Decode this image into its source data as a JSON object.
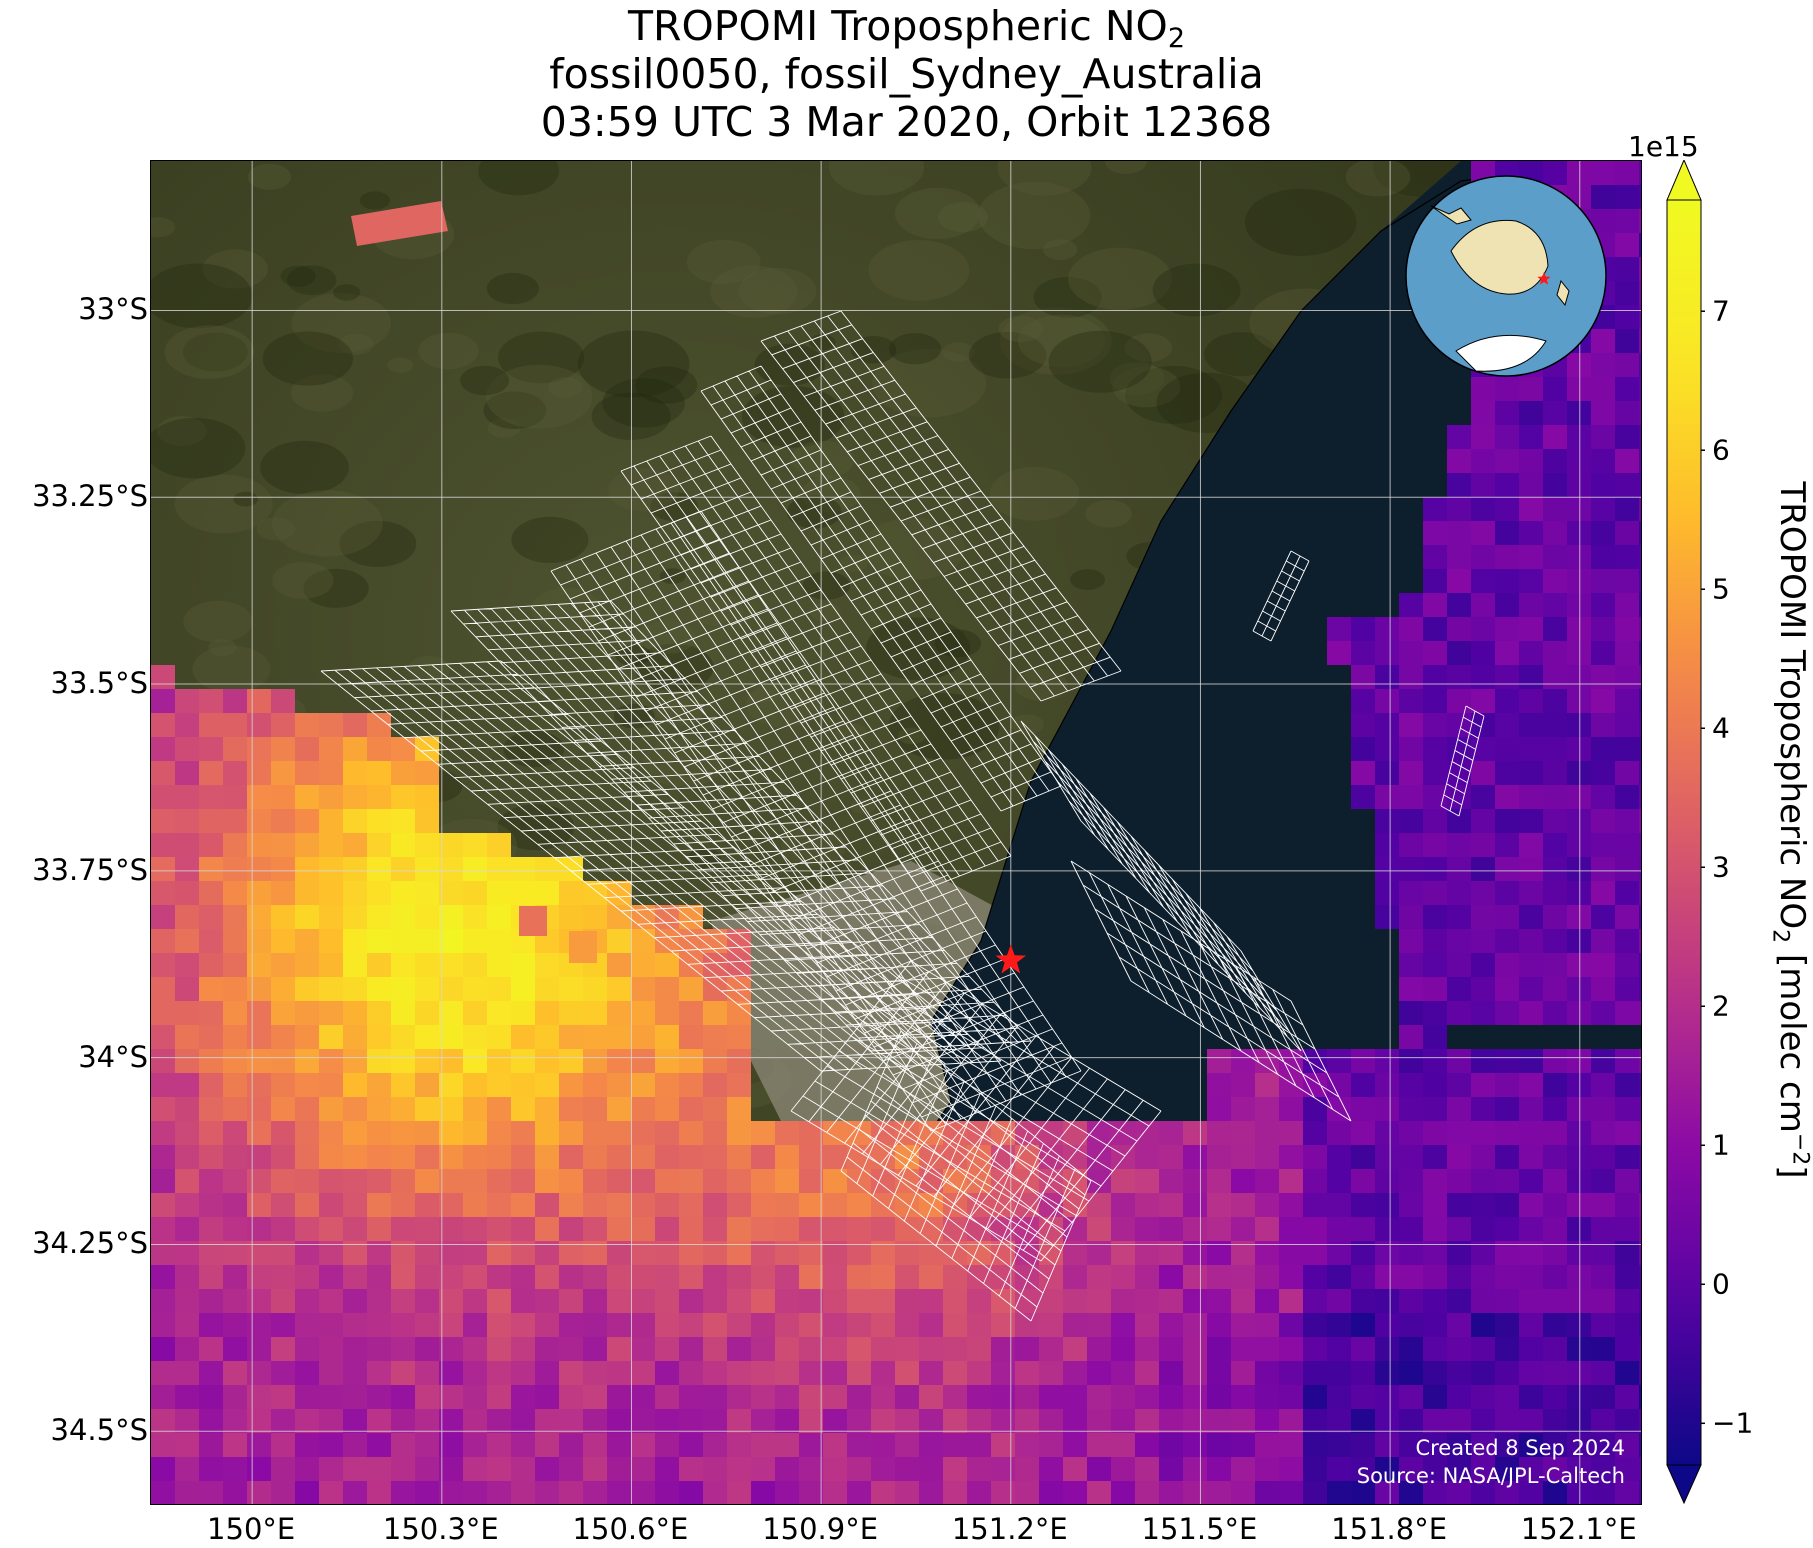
{
  "title": {
    "line1_prefix": "TROPOMI Tropospheric NO",
    "line1_sub": "2",
    "line2": "fossil0050, fossil_Sydney_Australia",
    "line3": "03:59 UTC 3 Mar 2020, Orbit 12368"
  },
  "map": {
    "lon_ticks": [
      {
        "value": 150.0,
        "label": "150°E"
      },
      {
        "value": 150.3,
        "label": "150.3°E"
      },
      {
        "value": 150.6,
        "label": "150.6°E"
      },
      {
        "value": 150.9,
        "label": "150.9°E"
      },
      {
        "value": 151.2,
        "label": "151.2°E"
      },
      {
        "value": 151.5,
        "label": "151.5°E"
      },
      {
        "value": 151.8,
        "label": "151.8°E"
      },
      {
        "value": 152.1,
        "label": "152.1°E"
      }
    ],
    "lat_ticks": [
      {
        "value": -33.0,
        "label": "33°S"
      },
      {
        "value": -33.25,
        "label": "33.25°S"
      },
      {
        "value": -33.5,
        "label": "33.5°S"
      },
      {
        "value": -33.75,
        "label": "33.75°S"
      },
      {
        "value": -34.0,
        "label": "34°S"
      },
      {
        "value": -34.25,
        "label": "34.25°S"
      },
      {
        "value": -34.5,
        "label": "34.5°S"
      }
    ],
    "lon_range": [
      149.84,
      152.2
    ],
    "lat_range": [
      -34.6,
      -32.8
    ],
    "target_marker": {
      "lon": 151.2,
      "lat": -33.87,
      "symbol": "star",
      "color": "#ff1a1a"
    },
    "credit_line1": "Created 8 Sep 2024",
    "credit_line2": "Source: NASA/JPL-Caltech",
    "inset_globe": {
      "centered_on": "Australia",
      "marker": "star",
      "marker_color": "#ff1a1a"
    },
    "colors": {
      "land": "#3e4424",
      "ocean": "#0d1f2d",
      "urban": "#8e8a78",
      "grid": "#d9d9d9",
      "footprint_grid": "#ffffff"
    }
  },
  "colorbar": {
    "colormap": "plasma",
    "exponent_label": "1e15",
    "min": -1.3,
    "max": 7.8,
    "extend": "both",
    "ticks": [
      {
        "value": -1,
        "label": "−1"
      },
      {
        "value": 0,
        "label": "0"
      },
      {
        "value": 1,
        "label": "1"
      },
      {
        "value": 2,
        "label": "2"
      },
      {
        "value": 3,
        "label": "3"
      },
      {
        "value": 4,
        "label": "4"
      },
      {
        "value": 5,
        "label": "5"
      },
      {
        "value": 6,
        "label": "6"
      },
      {
        "value": 7,
        "label": "7"
      }
    ],
    "label_prefix": "TROPOMI Tropospheric NO",
    "label_sub": "2",
    "label_mid": " [molec cm",
    "label_sup": "−2",
    "label_suffix": "]"
  }
}
